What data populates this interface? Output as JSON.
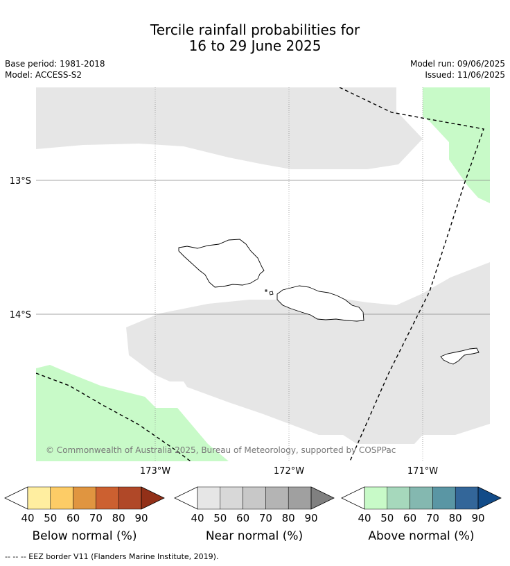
{
  "title": {
    "line1": "Tercile rainfall probabilities for",
    "line2": "16 to 29 June 2025"
  },
  "meta": {
    "base_period": "Base period: 1981-2018",
    "model": "Model: ACCESS-S2",
    "model_run": "Model run: 09/06/2025",
    "issued": "Issued: 11/06/2025"
  },
  "map": {
    "lat_labels": [
      "13°S",
      "14°S"
    ],
    "lon_labels": [
      "173°W",
      "172°W",
      "171°W"
    ],
    "copyright": "© Commonwealth of Australia 2025, Bureau of Meteorology, supported by COSPPac",
    "colors": {
      "near_normal_40": "#e6e6e6",
      "above_normal_40": "#c8fac8",
      "land_outline": "#000000",
      "eez_line": "#000000"
    }
  },
  "colorbars": [
    {
      "title": "Below normal (%)",
      "ticks": [
        "40",
        "50",
        "60",
        "70",
        "80",
        "90"
      ],
      "colors": [
        "#ffffff",
        "#ffeea0",
        "#fdcc66",
        "#e09540",
        "#cc6030",
        "#b04828",
        "#923018"
      ]
    },
    {
      "title": "Near normal (%)",
      "ticks": [
        "40",
        "50",
        "60",
        "70",
        "80",
        "90"
      ],
      "colors": [
        "#ffffff",
        "#e6e6e6",
        "#d8d8d8",
        "#c8c8c8",
        "#b4b4b4",
        "#a0a0a0",
        "#808080"
      ]
    },
    {
      "title": "Above normal (%)",
      "ticks": [
        "40",
        "50",
        "60",
        "70",
        "80",
        "90"
      ],
      "colors": [
        "#ffffff",
        "#c8fac8",
        "#a6d8bc",
        "#84b8b0",
        "#5a96a4",
        "#336699",
        "#124b88"
      ]
    }
  ],
  "footnote": "-- -- -- EEZ border V11 (Flanders Marine Institute, 2019)."
}
